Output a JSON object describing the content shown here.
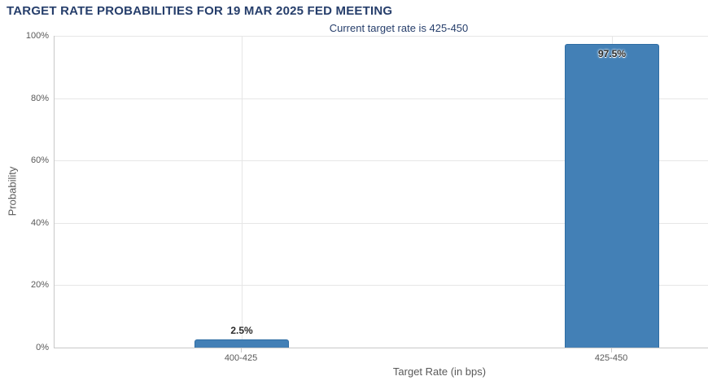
{
  "chart_data": {
    "type": "bar",
    "title": "TARGET RATE PROBABILITIES FOR 19 MAR 2025 FED MEETING",
    "subtitle": "Current target rate is 425-450",
    "categories": [
      "400-425",
      "425-450"
    ],
    "values": [
      2.5,
      97.5
    ],
    "value_labels": [
      "2.5%",
      "97.5%"
    ],
    "xlabel": "Target Rate (in bps)",
    "ylabel": "Probability",
    "ylim": [
      0,
      100
    ],
    "yticks": [
      0,
      20,
      40,
      60,
      80,
      100
    ],
    "ytick_labels": [
      "0%",
      "20%",
      "40%",
      "60%",
      "80%",
      "100%"
    ],
    "grid": "horizontal gridlines every 20% plus vertical gridline at each category center",
    "legend": "none"
  },
  "colors": {
    "title": "#263e6b",
    "bar_fill": "#4380b6",
    "bar_border": "#2e6da4",
    "gridline": "#e6e6e6",
    "axis_line": "#c8c8c8",
    "tick_text": "#595959",
    "background": "#ffffff"
  }
}
